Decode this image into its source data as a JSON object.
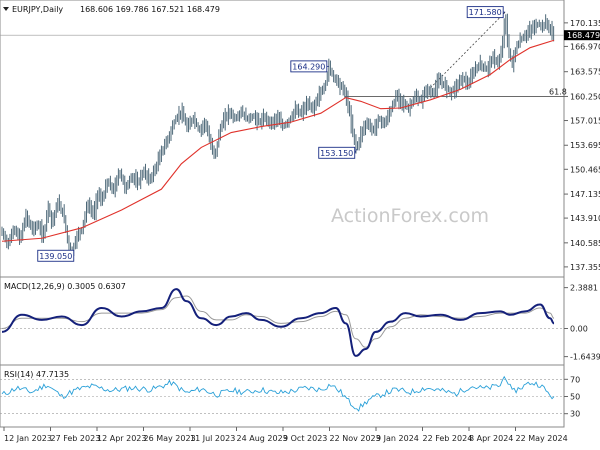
{
  "chart_data": [
    {
      "type": "candlestick",
      "header": {
        "symbol": "EURJPY,Daily",
        "values": "168.606 169.786 167.521 168.479"
      },
      "x_ticks": [
        "12 Jan 2023",
        "27 Feb 2023",
        "12 Apr 2023",
        "26 May 2023",
        "11 Jul 2023",
        "24 Aug 2023",
        "9 Oct 2023",
        "22 Nov 2023",
        "9 Jan 2024",
        "22 Feb 2024",
        "8 Apr 2024",
        "22 May 2024"
      ],
      "y_ticks": [
        "170.135",
        "166.970",
        "163.575",
        "160.250",
        "157.015",
        "153.695",
        "150.465",
        "147.135",
        "143.910",
        "140.585",
        "137.355"
      ],
      "ylim": [
        136.4,
        172.4
      ],
      "price_points": [
        {
          "x": 0,
          "y": 142.0
        },
        {
          "x": 6,
          "y": 140.4
        },
        {
          "x": 12,
          "y": 142.6
        },
        {
          "x": 18,
          "y": 141.0
        },
        {
          "x": 24,
          "y": 144.2
        },
        {
          "x": 30,
          "y": 142.4
        },
        {
          "x": 36,
          "y": 143.0
        },
        {
          "x": 42,
          "y": 141.4
        },
        {
          "x": 46,
          "y": 145.8
        },
        {
          "x": 50,
          "y": 143.2
        },
        {
          "x": 56,
          "y": 146.0
        },
        {
          "x": 62,
          "y": 144.2
        },
        {
          "x": 66,
          "y": 140.8
        },
        {
          "x": 70,
          "y": 139.05
        },
        {
          "x": 74,
          "y": 141.2
        },
        {
          "x": 80,
          "y": 142.4
        },
        {
          "x": 86,
          "y": 145.8
        },
        {
          "x": 92,
          "y": 144.4
        },
        {
          "x": 96,
          "y": 147.2
        },
        {
          "x": 100,
          "y": 146.2
        },
        {
          "x": 106,
          "y": 148.8
        },
        {
          "x": 112,
          "y": 147.6
        },
        {
          "x": 118,
          "y": 150.2
        },
        {
          "x": 124,
          "y": 147.8
        },
        {
          "x": 130,
          "y": 149.6
        },
        {
          "x": 136,
          "y": 148.6
        },
        {
          "x": 142,
          "y": 150.2
        },
        {
          "x": 148,
          "y": 149.0
        },
        {
          "x": 154,
          "y": 150.6
        },
        {
          "x": 160,
          "y": 152.8
        },
        {
          "x": 166,
          "y": 154.4
        },
        {
          "x": 170,
          "y": 155.8
        },
        {
          "x": 174,
          "y": 157.2
        },
        {
          "x": 180,
          "y": 158.2
        },
        {
          "x": 186,
          "y": 156.0
        },
        {
          "x": 192,
          "y": 157.4
        },
        {
          "x": 198,
          "y": 155.6
        },
        {
          "x": 204,
          "y": 156.8
        },
        {
          "x": 210,
          "y": 153.4
        },
        {
          "x": 214,
          "y": 152.4
        },
        {
          "x": 218,
          "y": 155.4
        },
        {
          "x": 222,
          "y": 157.0
        },
        {
          "x": 228,
          "y": 158.2
        },
        {
          "x": 234,
          "y": 157.2
        },
        {
          "x": 240,
          "y": 158.2
        },
        {
          "x": 246,
          "y": 157.2
        },
        {
          "x": 252,
          "y": 157.6
        },
        {
          "x": 258,
          "y": 156.8
        },
        {
          "x": 264,
          "y": 157.4
        },
        {
          "x": 270,
          "y": 156.6
        },
        {
          "x": 276,
          "y": 157.4
        },
        {
          "x": 282,
          "y": 156.2
        },
        {
          "x": 288,
          "y": 157.0
        },
        {
          "x": 294,
          "y": 158.4
        },
        {
          "x": 300,
          "y": 158.0
        },
        {
          "x": 306,
          "y": 159.2
        },
        {
          "x": 312,
          "y": 158.6
        },
        {
          "x": 318,
          "y": 160.4
        },
        {
          "x": 324,
          "y": 161.6
        },
        {
          "x": 328,
          "y": 164.29
        },
        {
          "x": 332,
          "y": 163.0
        },
        {
          "x": 336,
          "y": 162.4
        },
        {
          "x": 340,
          "y": 161.6
        },
        {
          "x": 344,
          "y": 160.8
        },
        {
          "x": 348,
          "y": 158.6
        },
        {
          "x": 352,
          "y": 155.4
        },
        {
          "x": 356,
          "y": 153.15
        },
        {
          "x": 360,
          "y": 155.2
        },
        {
          "x": 366,
          "y": 156.8
        },
        {
          "x": 372,
          "y": 155.6
        },
        {
          "x": 378,
          "y": 157.2
        },
        {
          "x": 384,
          "y": 156.6
        },
        {
          "x": 390,
          "y": 158.4
        },
        {
          "x": 396,
          "y": 160.4
        },
        {
          "x": 402,
          "y": 159.4
        },
        {
          "x": 408,
          "y": 158.6
        },
        {
          "x": 414,
          "y": 160.2
        },
        {
          "x": 420,
          "y": 159.6
        },
        {
          "x": 426,
          "y": 161.2
        },
        {
          "x": 432,
          "y": 160.6
        },
        {
          "x": 438,
          "y": 162.4
        },
        {
          "x": 444,
          "y": 161.8
        },
        {
          "x": 450,
          "y": 160.8
        },
        {
          "x": 456,
          "y": 161.6
        },
        {
          "x": 462,
          "y": 162.8
        },
        {
          "x": 468,
          "y": 161.8
        },
        {
          "x": 474,
          "y": 163.8
        },
        {
          "x": 480,
          "y": 164.6
        },
        {
          "x": 486,
          "y": 163.8
        },
        {
          "x": 492,
          "y": 165.4
        },
        {
          "x": 498,
          "y": 164.8
        },
        {
          "x": 502,
          "y": 166.6
        },
        {
          "x": 505,
          "y": 171.58
        },
        {
          "x": 508,
          "y": 166.4
        },
        {
          "x": 512,
          "y": 164.6
        },
        {
          "x": 516,
          "y": 166.8
        },
        {
          "x": 520,
          "y": 167.8
        },
        {
          "x": 526,
          "y": 168.6
        },
        {
          "x": 532,
          "y": 169.4
        },
        {
          "x": 538,
          "y": 170.0
        },
        {
          "x": 542,
          "y": 169.6
        },
        {
          "x": 546,
          "y": 170.2
        },
        {
          "x": 550,
          "y": 169.2
        },
        {
          "x": 554,
          "y": 168.479
        }
      ],
      "ma_points": [
        {
          "x": 0,
          "y": 140.8
        },
        {
          "x": 40,
          "y": 141.2
        },
        {
          "x": 80,
          "y": 142.6
        },
        {
          "x": 120,
          "y": 145.0
        },
        {
          "x": 160,
          "y": 147.8
        },
        {
          "x": 180,
          "y": 151.2
        },
        {
          "x": 200,
          "y": 153.4
        },
        {
          "x": 230,
          "y": 155.4
        },
        {
          "x": 260,
          "y": 156.2
        },
        {
          "x": 290,
          "y": 156.8
        },
        {
          "x": 320,
          "y": 158.0
        },
        {
          "x": 345,
          "y": 160.1
        },
        {
          "x": 360,
          "y": 159.6
        },
        {
          "x": 380,
          "y": 158.6
        },
        {
          "x": 400,
          "y": 158.7
        },
        {
          "x": 430,
          "y": 159.8
        },
        {
          "x": 460,
          "y": 161.2
        },
        {
          "x": 490,
          "y": 163.2
        },
        {
          "x": 510,
          "y": 165.2
        },
        {
          "x": 530,
          "y": 166.8
        },
        {
          "x": 554,
          "y": 167.8
        }
      ],
      "annotations": [
        {
          "text": "139.050",
          "x": 70,
          "y": 139.05
        },
        {
          "text": "164.290",
          "x": 328,
          "y": 164.29
        },
        {
          "text": "153.150",
          "x": 356,
          "y": 153.15
        },
        {
          "text": "171.580",
          "x": 505,
          "y": 171.58
        }
      ],
      "fib_label": "61.8",
      "fib_level": 160.25,
      "current_price": "168.479",
      "watermark": "ActionForex.com"
    },
    {
      "type": "line",
      "label": "MACD(12,26,9) 0.3005 0.6307",
      "y_ticks": [
        "2.3881",
        "0.00",
        "-1.6439"
      ],
      "ylim": [
        -1.9,
        2.6
      ],
      "series": [
        {
          "values": [
            [
              0,
              -0.2
            ],
            [
              20,
              0.8
            ],
            [
              40,
              0.5
            ],
            [
              60,
              0.7
            ],
            [
              80,
              0.2
            ],
            [
              100,
              1.2
            ],
            [
              120,
              0.7
            ],
            [
              140,
              1.0
            ],
            [
              160,
              1.2
            ],
            [
              175,
              2.3
            ],
            [
              185,
              1.6
            ],
            [
              200,
              0.6
            ],
            [
              215,
              0.2
            ],
            [
              230,
              0.7
            ],
            [
              245,
              0.9
            ],
            [
              260,
              0.5
            ],
            [
              280,
              0.1
            ],
            [
              300,
              0.6
            ],
            [
              320,
              0.9
            ],
            [
              335,
              1.2
            ],
            [
              345,
              0.3
            ],
            [
              355,
              -1.6
            ],
            [
              365,
              -1.2
            ],
            [
              375,
              -0.2
            ],
            [
              390,
              0.4
            ],
            [
              405,
              0.9
            ],
            [
              420,
              0.7
            ],
            [
              440,
              0.8
            ],
            [
              460,
              0.5
            ],
            [
              480,
              0.9
            ],
            [
              500,
              1.0
            ],
            [
              510,
              0.8
            ],
            [
              525,
              1.0
            ],
            [
              540,
              1.4
            ],
            [
              550,
              0.6
            ],
            [
              554,
              0.3
            ]
          ]
        },
        {
          "values": [
            [
              0,
              0.0
            ],
            [
              20,
              0.6
            ],
            [
              40,
              0.6
            ],
            [
              60,
              0.6
            ],
            [
              80,
              0.4
            ],
            [
              100,
              0.9
            ],
            [
              120,
              0.9
            ],
            [
              140,
              0.9
            ],
            [
              160,
              1.1
            ],
            [
              175,
              1.8
            ],
            [
              185,
              1.9
            ],
            [
              200,
              1.0
            ],
            [
              215,
              0.5
            ],
            [
              230,
              0.5
            ],
            [
              245,
              0.8
            ],
            [
              260,
              0.7
            ],
            [
              280,
              0.3
            ],
            [
              300,
              0.4
            ],
            [
              320,
              0.7
            ],
            [
              335,
              1.0
            ],
            [
              345,
              0.8
            ],
            [
              355,
              -0.6
            ],
            [
              365,
              -1.1
            ],
            [
              375,
              -0.6
            ],
            [
              390,
              0.1
            ],
            [
              405,
              0.6
            ],
            [
              420,
              0.8
            ],
            [
              440,
              0.7
            ],
            [
              460,
              0.6
            ],
            [
              480,
              0.7
            ],
            [
              500,
              0.9
            ],
            [
              510,
              0.9
            ],
            [
              525,
              0.9
            ],
            [
              540,
              1.2
            ],
            [
              550,
              0.9
            ],
            [
              554,
              0.6
            ]
          ]
        }
      ]
    },
    {
      "type": "line",
      "label": "RSI(14) 47.7135",
      "y_ticks": [
        "70",
        "50",
        "30"
      ],
      "ylim": [
        18,
        82
      ],
      "series": [
        {
          "values": [
            [
              0,
              52
            ],
            [
              15,
              60
            ],
            [
              30,
              55
            ],
            [
              45,
              64
            ],
            [
              60,
              50
            ],
            [
              75,
              58
            ],
            [
              90,
              62
            ],
            [
              110,
              57
            ],
            [
              130,
              60
            ],
            [
              150,
              58
            ],
            [
              170,
              66
            ],
            [
              185,
              54
            ],
            [
              200,
              59
            ],
            [
              215,
              52
            ],
            [
              230,
              57
            ],
            [
              245,
              55
            ],
            [
              260,
              58
            ],
            [
              275,
              54
            ],
            [
              290,
              56
            ],
            [
              305,
              60
            ],
            [
              320,
              58
            ],
            [
              330,
              64
            ],
            [
              340,
              55
            ],
            [
              350,
              42
            ],
            [
              358,
              36
            ],
            [
              368,
              46
            ],
            [
              380,
              52
            ],
            [
              395,
              58
            ],
            [
              410,
              55
            ],
            [
              425,
              60
            ],
            [
              440,
              57
            ],
            [
              455,
              53
            ],
            [
              470,
              62
            ],
            [
              485,
              59
            ],
            [
              500,
              63
            ],
            [
              505,
              75
            ],
            [
              512,
              55
            ],
            [
              520,
              60
            ],
            [
              530,
              66
            ],
            [
              540,
              64
            ],
            [
              548,
              54
            ],
            [
              554,
              48
            ]
          ]
        }
      ]
    }
  ]
}
